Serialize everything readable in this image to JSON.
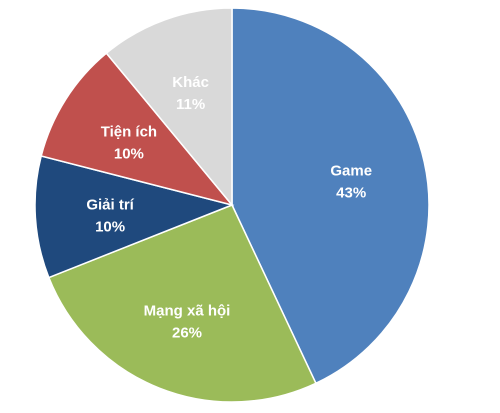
{
  "chart_data": {
    "type": "pie",
    "start_angle_deg": 0,
    "direction": "clockwise",
    "slices": [
      {
        "label": "Game",
        "value": 43,
        "value_label": "43%",
        "color": "#4F81BD",
        "label_color": "#FFFFFF"
      },
      {
        "label": "Mạng xã hội",
        "value": 26,
        "value_label": "26%",
        "color": "#9BBB59",
        "label_color": "#FFFFFF"
      },
      {
        "label": "Giải trí",
        "value": 10,
        "value_label": "10%",
        "color": "#1F497D",
        "label_color": "#FFFFFF"
      },
      {
        "label": "Tiện ích",
        "value": 10,
        "value_label": "10%",
        "color": "#C0504D",
        "label_color": "#FFFFFF"
      },
      {
        "label": "Khác",
        "value": 11,
        "value_label": "11%",
        "color": "#D9D9D9",
        "label_color": "#FFFFFF"
      }
    ]
  }
}
